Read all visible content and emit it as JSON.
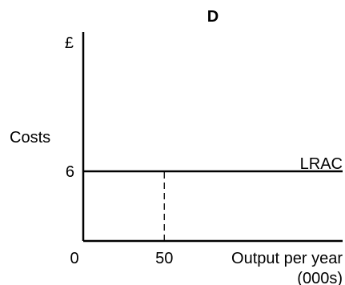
{
  "chart_data": {
    "type": "line",
    "title": "D",
    "ylabel": "Costs",
    "yunit": "£",
    "xlabel_line1": "Output per year",
    "xlabel_line2": "(000s)",
    "origin_label": "0",
    "x_tick_values": [
      50
    ],
    "x_tick_labels": [
      "50"
    ],
    "y_tick_values": [
      6
    ],
    "y_tick_labels": [
      "6"
    ],
    "xlim": [
      0,
      160
    ],
    "ylim": [
      0,
      18
    ],
    "series": [
      {
        "name": "LRAC",
        "x": [
          0,
          160
        ],
        "y": [
          6,
          6
        ]
      }
    ],
    "guides": [
      {
        "style": "dashed",
        "x": [
          50,
          50
        ],
        "y": [
          0,
          6
        ]
      }
    ],
    "grid": false,
    "legend": "none"
  },
  "colors": {
    "ink": "#000000",
    "background": "#ffffff"
  }
}
